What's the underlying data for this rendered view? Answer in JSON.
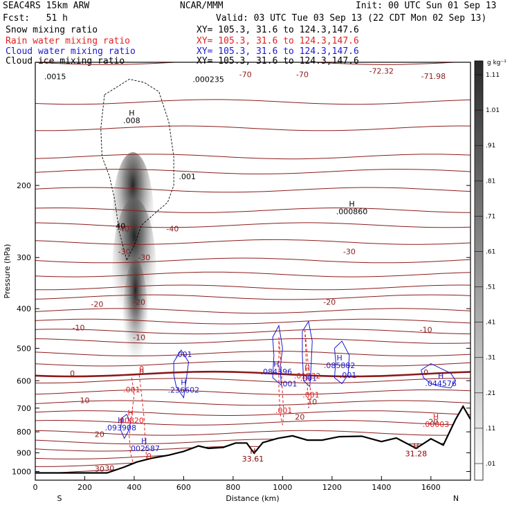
{
  "header": {
    "title_left": "SEAC4RS 15km ARW",
    "title_center": "NCAR/MMM",
    "init": "Init: 00 UTC Sun 01 Sep 13",
    "fcst": "Fcst:   51 h",
    "valid": "Valid: 03 UTC Tue 03 Sep 13 (22 CDT Mon 02 Sep 13)",
    "fields": [
      {
        "name": "Snow mixing ratio",
        "xy": "XY= 105.3, 31.6 to 124.3,147.6",
        "color": "#000000"
      },
      {
        "name": "Rain water mixing ratio",
        "xy": "XY= 105.3, 31.6 to 124.3,147.6",
        "color": "#e02020"
      },
      {
        "name": "Cloud water mixing ratio",
        "xy": "XY= 105.3, 31.6 to 124.3,147.6",
        "color": "#1a1acc"
      },
      {
        "name": "Cloud ice mixing ratio",
        "xy": "XY= 105.3, 31.6 to 124.3,147.6",
        "color": "#000000"
      }
    ]
  },
  "chart_data": {
    "type": "cross-section",
    "xlabel": "Distance (km)",
    "ylabel": "Pressure (hPa)",
    "xlim": [
      0,
      1760
    ],
    "ylim": [
      1050,
      100
    ],
    "y_scale": "log",
    "x_ticks": [
      0,
      200,
      400,
      600,
      800,
      1000,
      1200,
      1400,
      1600
    ],
    "y_ticks": [
      200,
      300,
      400,
      500,
      600,
      700,
      800,
      900,
      1000
    ],
    "endpoints": {
      "left": "S",
      "right": "N"
    },
    "colorbar": {
      "unit": "g kg⁻¹",
      "labels": [
        ".01",
        ".11",
        ".21",
        ".31",
        ".41",
        ".51",
        ".61",
        ".71",
        ".81",
        ".91",
        "1.01",
        "1.11"
      ]
    },
    "terrain_surface": [
      {
        "x": 0,
        "p": 1008
      },
      {
        "x": 290,
        "p": 1008
      },
      {
        "x": 360,
        "p": 975
      },
      {
        "x": 410,
        "p": 948
      },
      {
        "x": 470,
        "p": 928
      },
      {
        "x": 540,
        "p": 912
      },
      {
        "x": 600,
        "p": 893
      },
      {
        "x": 660,
        "p": 866
      },
      {
        "x": 700,
        "p": 878
      },
      {
        "x": 760,
        "p": 873
      },
      {
        "x": 810,
        "p": 852
      },
      {
        "x": 855,
        "p": 852
      },
      {
        "x": 885,
        "p": 902
      },
      {
        "x": 920,
        "p": 850
      },
      {
        "x": 980,
        "p": 830
      },
      {
        "x": 1040,
        "p": 818
      },
      {
        "x": 1100,
        "p": 838
      },
      {
        "x": 1160,
        "p": 838
      },
      {
        "x": 1230,
        "p": 822
      },
      {
        "x": 1320,
        "p": 820
      },
      {
        "x": 1400,
        "p": 845
      },
      {
        "x": 1460,
        "p": 828
      },
      {
        "x": 1540,
        "p": 878
      },
      {
        "x": 1600,
        "p": 832
      },
      {
        "x": 1650,
        "p": 862
      },
      {
        "x": 1700,
        "p": 745
      },
      {
        "x": 1730,
        "p": 693
      },
      {
        "x": 1760,
        "p": 745
      }
    ],
    "temperature_isotherms": [
      {
        "value": -70,
        "labels": [
          "-70",
          "-70",
          "-72.32",
          "-71.98"
        ]
      },
      {
        "value": -40,
        "labels": [
          "-40",
          "-40"
        ]
      },
      {
        "value": -30,
        "labels": [
          "-30",
          "-30",
          "-30"
        ]
      },
      {
        "value": -20,
        "labels": [
          "-20",
          "-20",
          "-20"
        ]
      },
      {
        "value": -10,
        "labels": [
          "-10",
          "-10",
          "-10"
        ]
      },
      {
        "value": 0,
        "labels": [
          "0",
          "0",
          "0"
        ]
      },
      {
        "value": 10,
        "labels": [
          "10",
          "10"
        ]
      },
      {
        "value": 20,
        "labels": [
          "20",
          "20",
          "20"
        ]
      },
      {
        "value": 30,
        "labels": [
          "30",
          "30"
        ]
      }
    ],
    "maxima_labels": [
      {
        "text": "H",
        "sub": ".008",
        "color": "#000000",
        "x": 390,
        "p": 135
      },
      {
        "text": "H",
        "sub": ".000860",
        "color": "#000000",
        "x": 1280,
        "p": 225
      },
      {
        "text": "",
        "sub": ".000235",
        "color": "#000000",
        "x": 700,
        "p": 107
      },
      {
        "text": "",
        "sub": ".001",
        "color": "#000000",
        "x": 615,
        "p": 185
      },
      {
        "text": "H",
        "sub": ".084396",
        "color": "#1a1acc",
        "x": 975,
        "p": 555
      },
      {
        "text": "H",
        "sub": ".085882",
        "color": "#1a1acc",
        "x": 1230,
        "p": 535
      },
      {
        "text": "H",
        "sub": ".044576",
        "color": "#1a1acc",
        "x": 1640,
        "p": 593
      },
      {
        "text": "H",
        "sub": ".236602",
        "color": "#1a1acc",
        "x": 600,
        "p": 615
      },
      {
        "text": "H",
        "sub": ".093908",
        "color": "#1a1acc",
        "x": 345,
        "p": 760
      },
      {
        "text": "H",
        "sub": ".002587",
        "color": "#1a1acc",
        "x": 440,
        "p": 855
      },
      {
        "text": "H",
        "sub": ".01832",
        "color": "#e02020",
        "x": 1100,
        "p": 568
      },
      {
        "text": "H",
        "sub": ".00820",
        "color": "#e02020",
        "x": 385,
        "p": 730
      },
      {
        "text": "H",
        "sub": ".00003",
        "color": "#e02020",
        "x": 1620,
        "p": 745
      },
      {
        "text": "H",
        "sub": "33.61",
        "color": "#8b0000",
        "x": 880,
        "p": 905
      },
      {
        "text": "H",
        "sub": "31.28",
        "color": "#8b0000",
        "x": 1540,
        "p": 880
      }
    ],
    "contour_labels": [
      {
        "text": ".001",
        "color": "#1a1acc",
        "x": 600,
        "p": 525
      },
      {
        "text": ".001",
        "color": "#1a1acc",
        "x": 1025,
        "p": 620
      },
      {
        "text": ".001",
        "color": "#1a1acc",
        "x": 1105,
        "p": 600
      },
      {
        "text": ".001",
        "color": "#1a1acc",
        "x": 1265,
        "p": 590
      },
      {
        "text": ".001",
        "color": "#e02020",
        "x": 390,
        "p": 640
      },
      {
        "text": ".001",
        "color": "#e02020",
        "x": 1005,
        "p": 720
      },
      {
        "text": ".001",
        "color": "#e02020",
        "x": 1115,
        "p": 660
      },
      {
        "text": "0",
        "color": "#e02020",
        "x": 430,
        "p": 570
      },
      {
        "text": "0",
        "color": "#e02020",
        "x": 460,
        "p": 930
      },
      {
        "text": ".0015",
        "color": "#000000",
        "x": 80,
        "p": 110
      },
      {
        "text": "40",
        "color": "#000000",
        "x": 345,
        "p": 255
      }
    ]
  }
}
